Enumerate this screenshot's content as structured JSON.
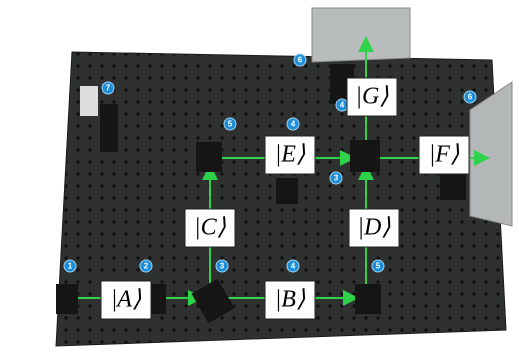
{
  "states": [
    {
      "label": "|A⟩"
    },
    {
      "label": "|B⟩"
    },
    {
      "label": "|C⟩"
    },
    {
      "label": "|D⟩"
    },
    {
      "label": "|E⟩"
    },
    {
      "label": "|F⟩"
    },
    {
      "label": "|G⟩"
    }
  ],
  "badges": [
    "1",
    "2",
    "3",
    "4",
    "5",
    "6",
    "7",
    "5",
    "4",
    "3",
    "4",
    "6"
  ]
}
